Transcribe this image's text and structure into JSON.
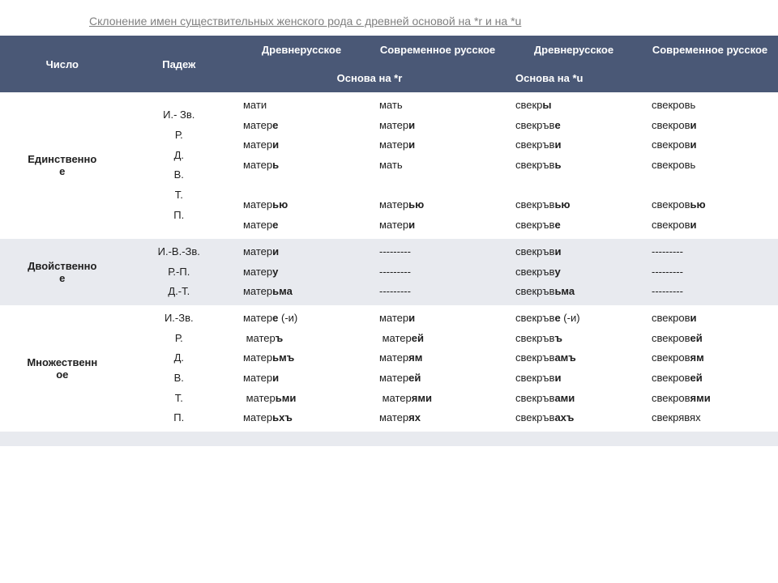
{
  "title": "Склонение имен существительных женского рода с древней основой на *r и на *u",
  "headers": {
    "number": "Число",
    "case": "Падеж",
    "old_russian": "Древнерусское",
    "modern_russian": "Современное русское",
    "stem_r": "Основа на *r",
    "stem_u": "Основа на *u"
  },
  "rows": [
    {
      "number_html": "Единственно<br>е",
      "cases_html": "И.- Зв.<br>Р.<br>Д.<br>В.<br>Т.<br>П.",
      "col3_html": "мати<br>матер<b>е</b><br>матер<b>и</b><br>матер<b>ь</b><br><br>матер<b>ью</b><br>матер<b>е</b>",
      "col4_html": "мать<br>матер<b>и</b><br>матер<b>и</b><br>мать<br><br>матер<b>ью</b><br>матер<b>и</b>",
      "col5_html": "свекр<b>ы</b><br>свекръв<b>е</b><br>свекръв<b>и</b><br>свекръв<b>ь</b><br><br>свекръв<b>ью</b><br>свекръв<b>е</b>",
      "col6_html": "свекровь<br>свекров<b>и</b><br>свекров<b>и</b><br>свекровь<br><br>свекров<b>ью</b><br>свекров<b>и</b>"
    },
    {
      "number_html": "Двойственно<br>е",
      "cases_html": "И.-В.-Зв.<br>Р.-П.<br>Д.-Т.",
      "col3_html": "матер<b>и</b><br>матер<b>у</b><br>матер<b>ьма</b>",
      "col4_html": "---------<br>---------<br>---------",
      "col5_html": "свекръв<b>и</b><br>свекръв<b>у</b><br>свекръв<b>ьма</b>",
      "col6_html": "---------<br>---------<br>---------"
    },
    {
      "number_html": "Множественн<br>ое",
      "cases_html": "И.-Зв.<br>Р.<br>Д.<br>В.<br>Т.<br>П.",
      "col3_html": "матер<b>е</b> (-и)<br>&nbsp;матер<b>ъ</b><br>матер<b>ьмъ</b><br>матер<b>и</b><br>&nbsp;матер<b>ьми</b><br>матер<b>ьхъ</b>",
      "col4_html": "матер<b>и</b><br>&nbsp;матер<b>ей</b><br>матер<b>ям</b><br>матер<b>ей</b><br>&nbsp;матер<b>ями</b><br>матер<b>ях</b>",
      "col5_html": "свекръв<b>е</b> (-и)<br>свекръв<b>ъ</b><br>свекръв<b>амъ</b><br>свекръв<b>и</b><br>свекръв<b>ами</b><br>свекръв<b>ахъ</b>",
      "col6_html": "свекров<b>и</b><br>свекров<b>ей</b><br>свекров<b>ям</b><br>свекров<b>ей</b><br>свекров<b>ями</b><br>свекрявях"
    }
  ],
  "colors": {
    "header_bg": "#4a5876",
    "header_text": "#ffffff",
    "row_alt_bg": "#e8eaef",
    "row_bg": "#ffffff",
    "text": "#202020",
    "title_color": "#808080"
  }
}
